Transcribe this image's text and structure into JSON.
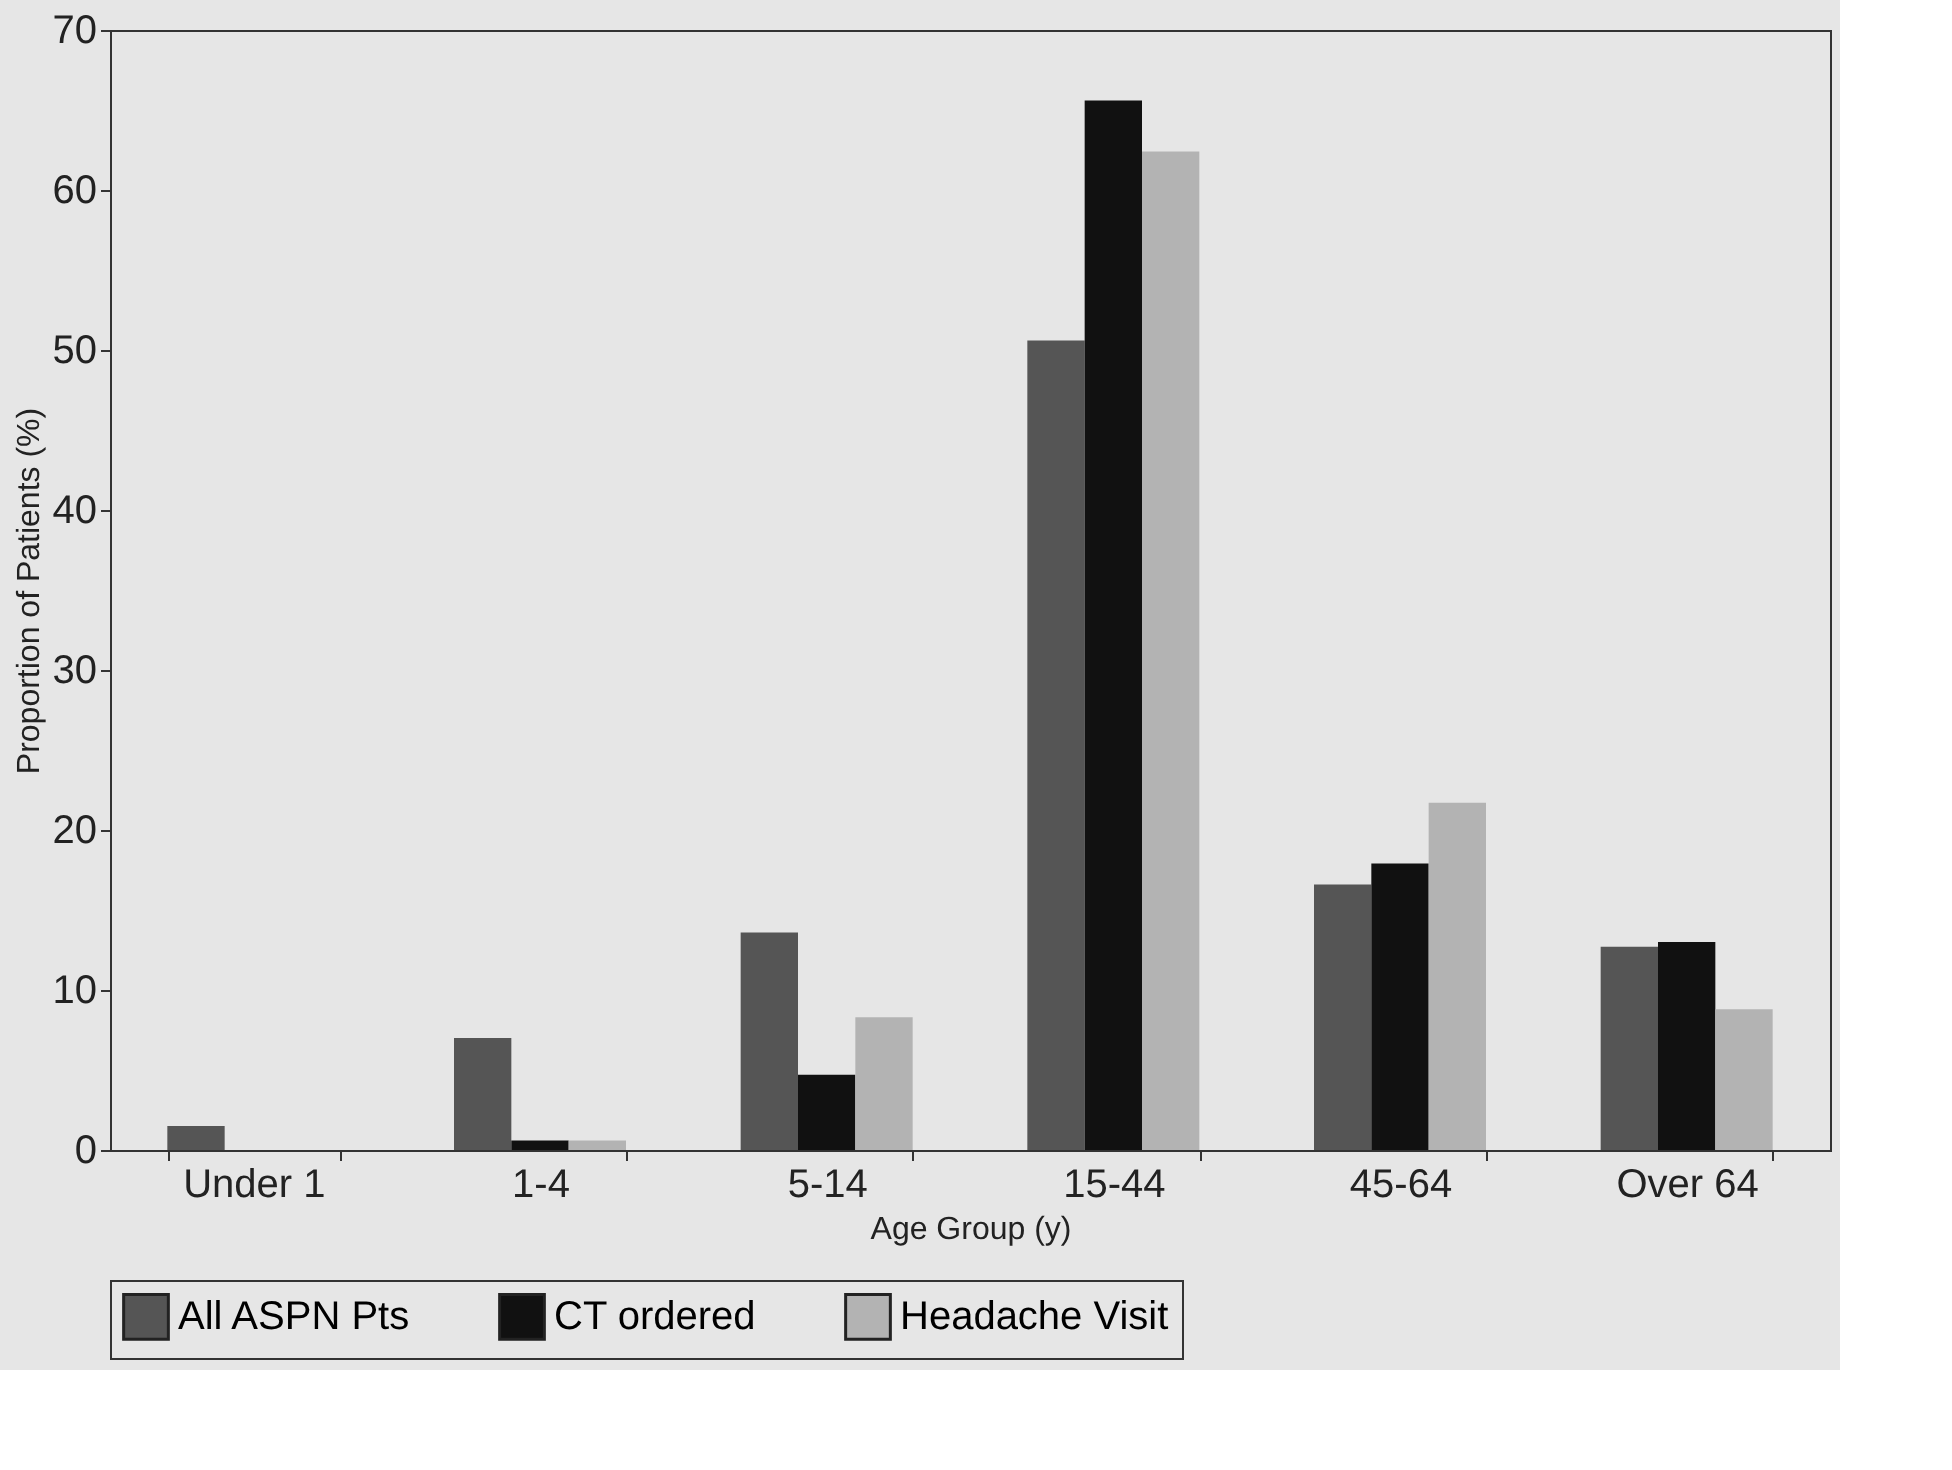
{
  "chart_data": {
    "type": "bar",
    "xlabel": "Age Group (y)",
    "ylabel": "Proportion of Patients (%)",
    "categories": [
      "Under 1",
      "1-4",
      "5-14",
      "15-44",
      "45-64",
      "Over 64"
    ],
    "series": [
      {
        "name": "All ASPN Pts",
        "color": "#555555",
        "values": [
          1.5,
          7.0,
          13.6,
          50.6,
          16.6,
          12.7
        ]
      },
      {
        "name": "CT ordered",
        "color": "#111111",
        "values": [
          null,
          0.6,
          4.7,
          65.6,
          17.9,
          13.0
        ]
      },
      {
        "name": "Headache Visit",
        "color": "#b3b3b3",
        "values": [
          null,
          0.6,
          8.3,
          62.4,
          21.7,
          8.8
        ]
      }
    ],
    "ylim": [
      0,
      70
    ],
    "yticks": [
      0,
      10,
      20,
      30,
      40,
      50,
      60,
      70
    ],
    "grid": false,
    "legend": "bottom"
  }
}
